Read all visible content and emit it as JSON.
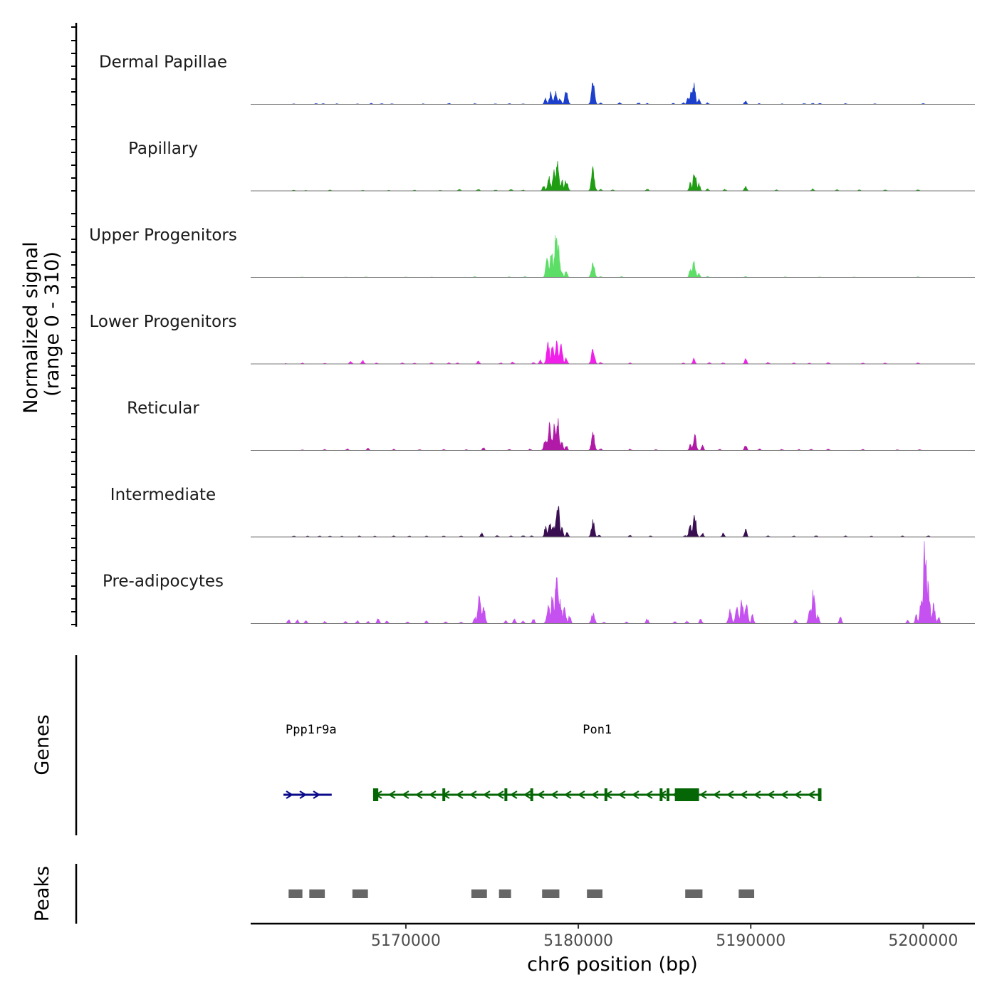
{
  "chart_data": {
    "type": "area",
    "title": "",
    "xlabel": "chr6 position (bp)",
    "xlim": [
      5161000,
      5203000
    ],
    "x_ticks": [
      5170000,
      5180000,
      5190000,
      5200000
    ],
    "x_tick_labels": [
      "5170000",
      "5180000",
      "5190000",
      "5200000"
    ],
    "coverage_ylabel_line1": "Normalized signal",
    "coverage_ylabel_line2": "(range 0 - 310)",
    "y_range": [
      0,
      310
    ],
    "series": [
      {
        "name": "Dermal Papillae",
        "color": "#1c3fcc",
        "baseline": "#17249a",
        "peaks": [
          [
            5163500,
            3
          ],
          [
            5164800,
            5
          ],
          [
            5165200,
            4
          ],
          [
            5166000,
            3
          ],
          [
            5167200,
            3
          ],
          [
            5168000,
            5
          ],
          [
            5168600,
            4
          ],
          [
            5169200,
            3
          ],
          [
            5171000,
            3
          ],
          [
            5172500,
            5
          ],
          [
            5174000,
            4
          ],
          [
            5175200,
            3
          ],
          [
            5176000,
            4
          ],
          [
            5176800,
            3
          ],
          [
            5178100,
            32
          ],
          [
            5178400,
            55
          ],
          [
            5178700,
            60
          ],
          [
            5178950,
            35
          ],
          [
            5179300,
            75
          ],
          [
            5180850,
            110
          ],
          [
            5181300,
            8
          ],
          [
            5182400,
            10
          ],
          [
            5183500,
            8
          ],
          [
            5184000,
            5
          ],
          [
            5185500,
            5
          ],
          [
            5186100,
            8
          ],
          [
            5186350,
            30
          ],
          [
            5186550,
            60
          ],
          [
            5186700,
            100
          ],
          [
            5187000,
            25
          ],
          [
            5187500,
            8
          ],
          [
            5189700,
            18
          ],
          [
            5190500,
            4
          ],
          [
            5191800,
            3
          ],
          [
            5193100,
            5
          ],
          [
            5193600,
            5
          ],
          [
            5194000,
            6
          ],
          [
            5195500,
            4
          ],
          [
            5197200,
            3
          ],
          [
            5200000,
            4
          ]
        ]
      },
      {
        "name": "Papillary",
        "color": "#1f9e14",
        "baseline": "#12700c",
        "peaks": [
          [
            5163500,
            4
          ],
          [
            5164200,
            3
          ],
          [
            5165600,
            5
          ],
          [
            5167500,
            3
          ],
          [
            5169000,
            3
          ],
          [
            5170500,
            4
          ],
          [
            5172000,
            3
          ],
          [
            5173100,
            8
          ],
          [
            5174200,
            10
          ],
          [
            5175200,
            4
          ],
          [
            5176100,
            8
          ],
          [
            5176800,
            4
          ],
          [
            5178000,
            30
          ],
          [
            5178300,
            65
          ],
          [
            5178600,
            90
          ],
          [
            5178800,
            140
          ],
          [
            5179050,
            50
          ],
          [
            5179300,
            55
          ],
          [
            5180850,
            105
          ],
          [
            5181300,
            8
          ],
          [
            5182000,
            5
          ],
          [
            5184000,
            10
          ],
          [
            5186500,
            45
          ],
          [
            5186750,
            100
          ],
          [
            5187000,
            35
          ],
          [
            5187500,
            10
          ],
          [
            5188500,
            8
          ],
          [
            5189700,
            25
          ],
          [
            5191500,
            5
          ],
          [
            5193600,
            10
          ],
          [
            5195000,
            6
          ],
          [
            5196300,
            5
          ],
          [
            5197800,
            5
          ],
          [
            5199700,
            5
          ]
        ]
      },
      {
        "name": "Upper Progenitors",
        "color": "#5dde67",
        "baseline": "#32a43a",
        "peaks": [
          [
            5164000,
            2
          ],
          [
            5166500,
            2
          ],
          [
            5167700,
            3
          ],
          [
            5170000,
            2
          ],
          [
            5171500,
            2
          ],
          [
            5174000,
            4
          ],
          [
            5176000,
            3
          ],
          [
            5176900,
            4
          ],
          [
            5178200,
            85
          ],
          [
            5178450,
            120
          ],
          [
            5178700,
            220
          ],
          [
            5178850,
            150
          ],
          [
            5179050,
            30
          ],
          [
            5179300,
            35
          ],
          [
            5180850,
            80
          ],
          [
            5181300,
            5
          ],
          [
            5182500,
            4
          ],
          [
            5186500,
            40
          ],
          [
            5186700,
            75
          ],
          [
            5187000,
            18
          ],
          [
            5187500,
            5
          ],
          [
            5189700,
            4
          ],
          [
            5192000,
            3
          ],
          [
            5194000,
            3
          ],
          [
            5196000,
            2
          ],
          [
            5199700,
            3
          ]
        ]
      },
      {
        "name": "Lower Progenitors",
        "color": "#f01fea",
        "baseline": "#b516b0",
        "peaks": [
          [
            5163000,
            3
          ],
          [
            5164000,
            5
          ],
          [
            5165300,
            4
          ],
          [
            5166800,
            15
          ],
          [
            5167500,
            18
          ],
          [
            5168300,
            5
          ],
          [
            5169800,
            6
          ],
          [
            5170500,
            4
          ],
          [
            5171500,
            7
          ],
          [
            5172500,
            6
          ],
          [
            5173000,
            5
          ],
          [
            5174200,
            15
          ],
          [
            5175500,
            6
          ],
          [
            5176200,
            10
          ],
          [
            5177400,
            8
          ],
          [
            5177800,
            18
          ],
          [
            5178250,
            100
          ],
          [
            5178500,
            80
          ],
          [
            5178750,
            110
          ],
          [
            5179000,
            90
          ],
          [
            5179300,
            30
          ],
          [
            5180850,
            80
          ],
          [
            5181300,
            8
          ],
          [
            5183000,
            6
          ],
          [
            5186100,
            5
          ],
          [
            5186700,
            25
          ],
          [
            5187600,
            8
          ],
          [
            5188400,
            6
          ],
          [
            5189700,
            25
          ],
          [
            5191000,
            8
          ],
          [
            5192500,
            6
          ],
          [
            5193400,
            5
          ],
          [
            5194500,
            8
          ],
          [
            5196500,
            5
          ],
          [
            5197800,
            5
          ],
          [
            5199700,
            6
          ]
        ]
      },
      {
        "name": "Reticular",
        "color": "#b01aa6",
        "baseline": "#7c1175",
        "peaks": [
          [
            5164000,
            3
          ],
          [
            5165300,
            5
          ],
          [
            5166600,
            8
          ],
          [
            5167800,
            10
          ],
          [
            5169300,
            6
          ],
          [
            5170800,
            5
          ],
          [
            5172200,
            5
          ],
          [
            5173500,
            4
          ],
          [
            5174500,
            15
          ],
          [
            5176000,
            6
          ],
          [
            5177200,
            8
          ],
          [
            5178100,
            60
          ],
          [
            5178350,
            130
          ],
          [
            5178600,
            115
          ],
          [
            5178800,
            150
          ],
          [
            5179050,
            50
          ],
          [
            5179300,
            25
          ],
          [
            5180850,
            90
          ],
          [
            5181300,
            8
          ],
          [
            5183000,
            6
          ],
          [
            5184500,
            5
          ],
          [
            5186500,
            30
          ],
          [
            5186750,
            70
          ],
          [
            5187200,
            25
          ],
          [
            5188200,
            6
          ],
          [
            5189700,
            30
          ],
          [
            5190500,
            8
          ],
          [
            5191800,
            6
          ],
          [
            5192800,
            5
          ],
          [
            5193500,
            6
          ],
          [
            5194500,
            8
          ],
          [
            5196500,
            5
          ],
          [
            5198500,
            4
          ],
          [
            5199800,
            5
          ]
        ]
      },
      {
        "name": "Intermediate",
        "color": "#3a0f52",
        "baseline": "#261036",
        "peaks": [
          [
            5163500,
            5
          ],
          [
            5164300,
            4
          ],
          [
            5165000,
            5
          ],
          [
            5165600,
            4
          ],
          [
            5166300,
            4
          ],
          [
            5167300,
            5
          ],
          [
            5168200,
            4
          ],
          [
            5169300,
            5
          ],
          [
            5170200,
            4
          ],
          [
            5171200,
            4
          ],
          [
            5172200,
            5
          ],
          [
            5173200,
            6
          ],
          [
            5174400,
            18
          ],
          [
            5175300,
            8
          ],
          [
            5176100,
            5
          ],
          [
            5176800,
            7
          ],
          [
            5177300,
            6
          ],
          [
            5178100,
            50
          ],
          [
            5178350,
            70
          ],
          [
            5178550,
            55
          ],
          [
            5178800,
            185
          ],
          [
            5179050,
            45
          ],
          [
            5179350,
            25
          ],
          [
            5180850,
            80
          ],
          [
            5181200,
            10
          ],
          [
            5183000,
            8
          ],
          [
            5184200,
            6
          ],
          [
            5186200,
            8
          ],
          [
            5186500,
            55
          ],
          [
            5186750,
            105
          ],
          [
            5187200,
            20
          ],
          [
            5188400,
            18
          ],
          [
            5189700,
            40
          ],
          [
            5191000,
            6
          ],
          [
            5192500,
            5
          ],
          [
            5193800,
            7
          ],
          [
            5195500,
            5
          ],
          [
            5197000,
            4
          ],
          [
            5198800,
            5
          ],
          [
            5200300,
            6
          ]
        ]
      },
      {
        "name": "Pre-adipocytes",
        "color": "#c451f0",
        "baseline": "#8a2cb0",
        "peaks": [
          [
            5163200,
            20
          ],
          [
            5163700,
            18
          ],
          [
            5164200,
            15
          ],
          [
            5165300,
            10
          ],
          [
            5166500,
            12
          ],
          [
            5167200,
            15
          ],
          [
            5167800,
            10
          ],
          [
            5168400,
            30
          ],
          [
            5168900,
            12
          ],
          [
            5170100,
            10
          ],
          [
            5171200,
            14
          ],
          [
            5172300,
            10
          ],
          [
            5173200,
            8
          ],
          [
            5174000,
            30
          ],
          [
            5174250,
            150
          ],
          [
            5174500,
            85
          ],
          [
            5175800,
            15
          ],
          [
            5176300,
            25
          ],
          [
            5176800,
            12
          ],
          [
            5177400,
            25
          ],
          [
            5178250,
            90
          ],
          [
            5178500,
            130
          ],
          [
            5178750,
            240
          ],
          [
            5178950,
            110
          ],
          [
            5179200,
            70
          ],
          [
            5179500,
            40
          ],
          [
            5180850,
            55
          ],
          [
            5181500,
            8
          ],
          [
            5182800,
            8
          ],
          [
            5184000,
            25
          ],
          [
            5185600,
            10
          ],
          [
            5186300,
            12
          ],
          [
            5187100,
            25
          ],
          [
            5188800,
            65
          ],
          [
            5189200,
            85
          ],
          [
            5189500,
            120
          ],
          [
            5189750,
            100
          ],
          [
            5190100,
            45
          ],
          [
            5192600,
            20
          ],
          [
            5193450,
            75
          ],
          [
            5193650,
            170
          ],
          [
            5193900,
            40
          ],
          [
            5195200,
            30
          ],
          [
            5199100,
            15
          ],
          [
            5199600,
            40
          ],
          [
            5199900,
            120
          ],
          [
            5200100,
            380
          ],
          [
            5200300,
            190
          ],
          [
            5200600,
            90
          ],
          [
            5200900,
            30
          ]
        ]
      }
    ],
    "genes": {
      "axis_label": "Genes",
      "items": [
        {
          "name": "Ppp1r9a",
          "start": 5162900,
          "end": 5165700,
          "strand": "+",
          "color": "#0a0a8a",
          "exons": [],
          "cds": [],
          "label_x": 5164500
        },
        {
          "name": "Pon1",
          "start": 5168100,
          "end": 5194100,
          "strand": "-",
          "color": "#056605",
          "exons": [
            5172200,
            5175800,
            5177300,
            5181600,
            5184800,
            5185200
          ],
          "cds": [
            5168100,
            5168400,
            5185600,
            5187000,
            5193900,
            5194100
          ],
          "label_x": 5181100
        }
      ]
    },
    "peaks": {
      "axis_label": "Peaks",
      "color": "#666666",
      "regions": [
        [
          5163200,
          5164000
        ],
        [
          5164400,
          5165300
        ],
        [
          5166900,
          5167800
        ],
        [
          5173800,
          5174700
        ],
        [
          5175400,
          5176100
        ],
        [
          5177900,
          5178900
        ],
        [
          5180500,
          5181400
        ],
        [
          5186200,
          5187200
        ],
        [
          5189300,
          5190200
        ]
      ]
    }
  }
}
